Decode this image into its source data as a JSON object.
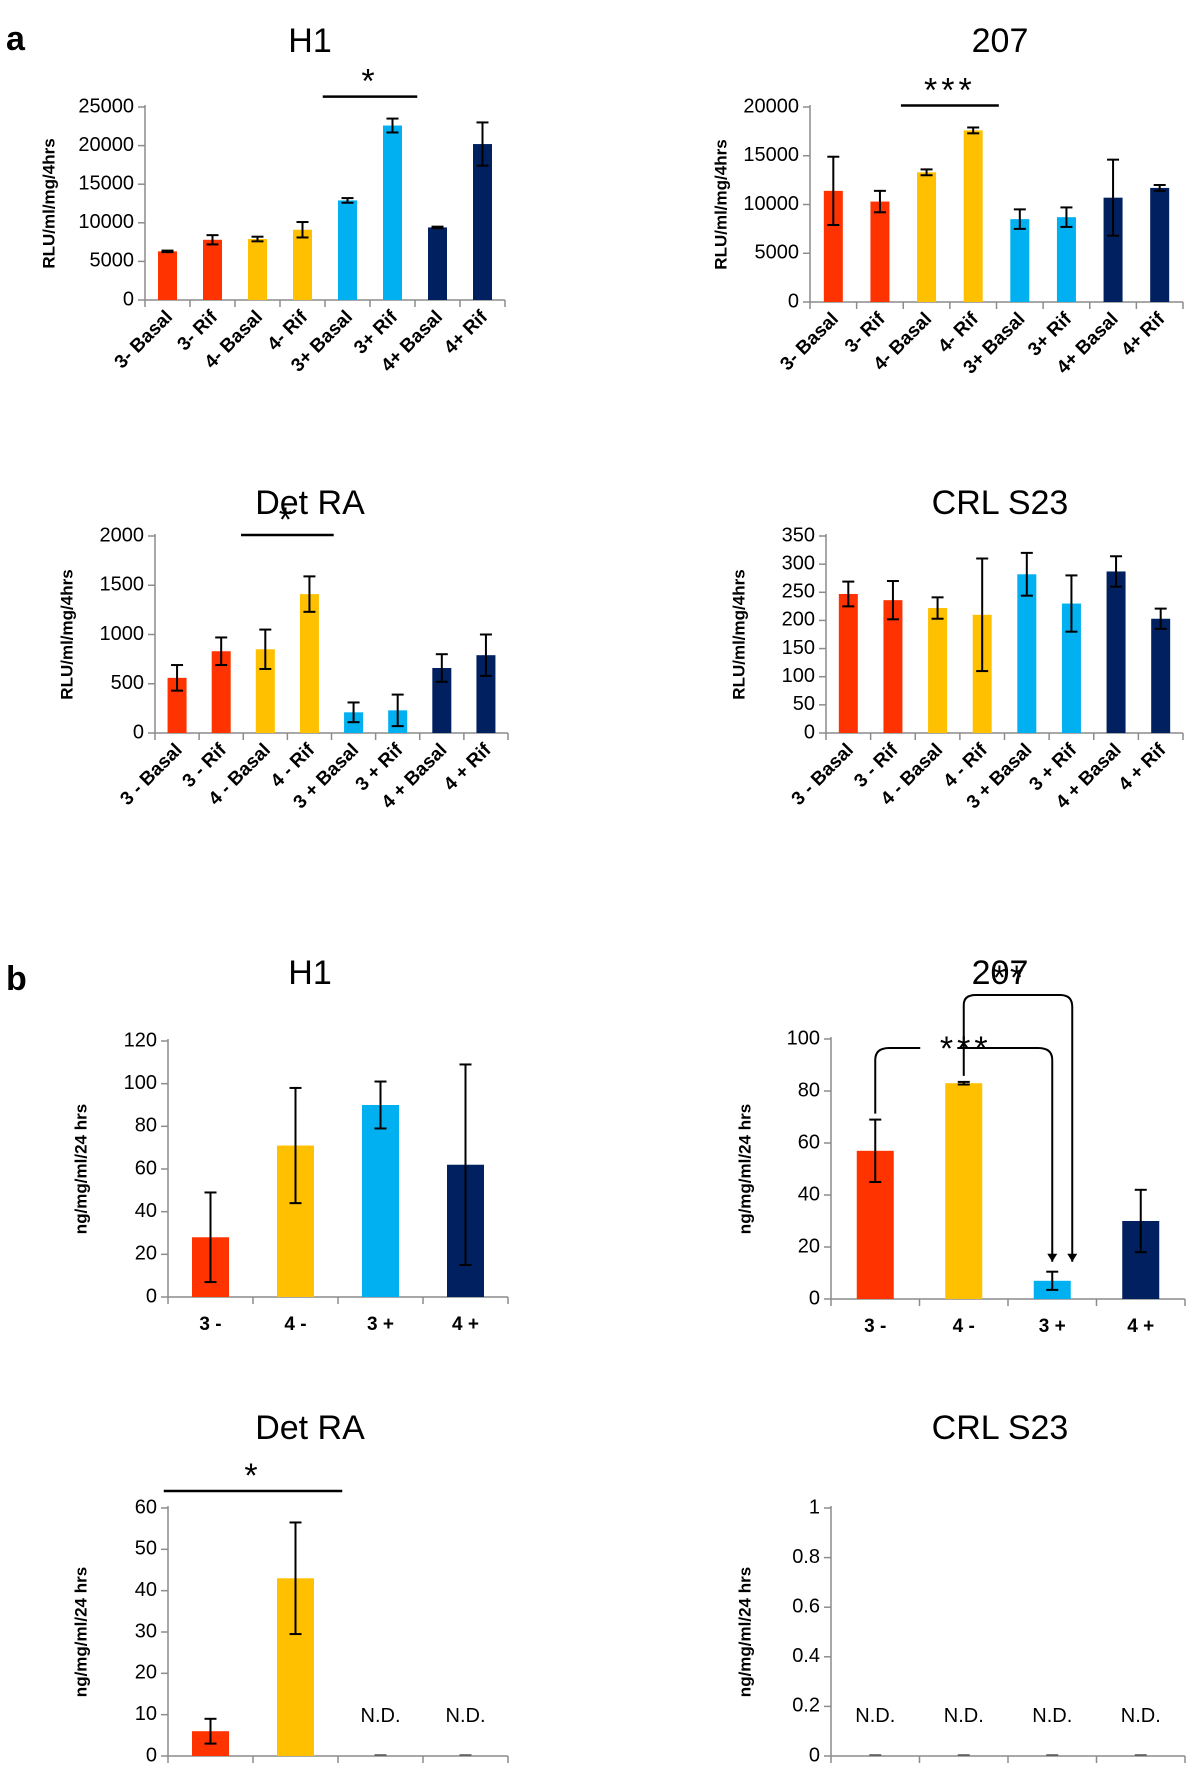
{
  "panels": {
    "a": "a",
    "b": "b"
  },
  "colors": {
    "red": "#ff3300",
    "yellow": "#ffc000",
    "lightblue": "#00b0f0",
    "navy": "#002060"
  },
  "chart_data": [
    {
      "id": "a-h1",
      "type": "bar",
      "title": "H1",
      "ylabel": "RLU/ml/mg/4hrs",
      "categories": [
        "3- Basal",
        "3- Rif",
        "4- Basal",
        "4- Rif",
        "3+ Basal",
        "3+ Rif",
        "4+ Basal",
        "4+ Rif"
      ],
      "values": [
        6300,
        7800,
        7900,
        9100,
        12900,
        22600,
        9400,
        20200
      ],
      "errors": [
        100,
        600,
        300,
        1000,
        300,
        900,
        100,
        2800
      ],
      "colors": [
        "red",
        "red",
        "yellow",
        "yellow",
        "lightblue",
        "lightblue",
        "navy",
        "navy"
      ],
      "ylim": [
        0,
        25000
      ],
      "yticks": [
        0,
        5000,
        10000,
        15000,
        20000,
        25000
      ],
      "significance": [
        {
          "label": "*",
          "from": 4,
          "to": 5
        }
      ],
      "nd": []
    },
    {
      "id": "a-207",
      "type": "bar",
      "title": "207",
      "ylabel": "RLU/ml/mg/4hrs",
      "categories": [
        "3- Basal",
        "3- Rif",
        "4- Basal",
        "4- Rif",
        "3+ Basal",
        "3+ Rif",
        "4+ Basal",
        "4+ Rif"
      ],
      "values": [
        11400,
        10300,
        13300,
        17600,
        8500,
        8700,
        10700,
        11700
      ],
      "errors": [
        3500,
        1100,
        300,
        300,
        1000,
        1000,
        3900,
        300
      ],
      "colors": [
        "red",
        "red",
        "yellow",
        "yellow",
        "lightblue",
        "lightblue",
        "navy",
        "navy"
      ],
      "ylim": [
        0,
        20000
      ],
      "yticks": [
        0,
        5000,
        10000,
        15000,
        20000
      ],
      "significance": [
        {
          "label": "***",
          "from": 2,
          "to": 3
        }
      ],
      "nd": []
    },
    {
      "id": "a-detra",
      "type": "bar",
      "title": "Det RA",
      "ylabel": "RLU/ml/mg/4hrs",
      "categories": [
        "3 - Basal",
        "3 - Rif",
        "4 - Basal",
        "4 - Rif",
        "3 + Basal",
        "3 + Rif",
        "4 + Basal",
        "4 + Rif"
      ],
      "values": [
        560,
        830,
        850,
        1410,
        210,
        230,
        660,
        790
      ],
      "errors": [
        130,
        140,
        200,
        180,
        100,
        160,
        140,
        210
      ],
      "colors": [
        "red",
        "red",
        "yellow",
        "yellow",
        "lightblue",
        "lightblue",
        "navy",
        "navy"
      ],
      "ylim": [
        0,
        2000
      ],
      "yticks": [
        0,
        500,
        1000,
        1500,
        2000
      ],
      "significance": [
        {
          "label": "*",
          "from": 2,
          "to": 3
        }
      ],
      "nd": []
    },
    {
      "id": "a-crl",
      "type": "bar",
      "title": "CRL S23",
      "ylabel": "RLU/ml/mg/4hrs",
      "categories": [
        "3 - Basal",
        "3 - Rif",
        "4 - Basal",
        "4 - Rif",
        "3 + Basal",
        "3 + Rif",
        "4 + Basal",
        "4 + Rif"
      ],
      "values": [
        247,
        236,
        222,
        210,
        282,
        230,
        287,
        203
      ],
      "errors": [
        22,
        34,
        19,
        100,
        38,
        50,
        27,
        18
      ],
      "colors": [
        "red",
        "red",
        "yellow",
        "yellow",
        "lightblue",
        "lightblue",
        "navy",
        "navy"
      ],
      "ylim": [
        0,
        350
      ],
      "yticks": [
        0,
        50,
        100,
        150,
        200,
        250,
        300,
        350
      ],
      "significance": [],
      "nd": []
    },
    {
      "id": "b-h1",
      "type": "bar",
      "title": "H1",
      "ylabel": "ng/mg/ml/24 hrs",
      "categories": [
        "3 -",
        "4 -",
        "3 +",
        "4 +"
      ],
      "values": [
        28,
        71,
        90,
        62
      ],
      "errors": [
        21,
        27,
        11,
        47
      ],
      "colors": [
        "red",
        "yellow",
        "lightblue",
        "navy"
      ],
      "ylim": [
        0,
        120
      ],
      "yticks": [
        0,
        20,
        40,
        60,
        80,
        100,
        120
      ],
      "significance": [],
      "nd": []
    },
    {
      "id": "b-207",
      "type": "bar",
      "title": "207",
      "ylabel": "ng/mg/ml/24 hrs",
      "categories": [
        "3 -",
        "4 -",
        "3 +",
        "4 +"
      ],
      "values": [
        57,
        83,
        7,
        30
      ],
      "errors": [
        12,
        0.5,
        3.5,
        12
      ],
      "colors": [
        "red",
        "yellow",
        "lightblue",
        "navy"
      ],
      "ylim": [
        0,
        100
      ],
      "yticks": [
        0,
        20,
        40,
        60,
        80,
        100
      ],
      "significance": [
        {
          "label": "***",
          "type": "bracket"
        },
        {
          "label": "**",
          "type": "bracket"
        }
      ],
      "nd": []
    },
    {
      "id": "b-detra",
      "type": "bar",
      "title": "Det RA",
      "ylabel": "ng/mg/ml/24 hrs",
      "categories": [
        "3 -",
        "4 -",
        "3 +",
        "4 +"
      ],
      "values": [
        6,
        43,
        0,
        0
      ],
      "errors": [
        3,
        13.5,
        0,
        0
      ],
      "colors": [
        "red",
        "yellow",
        "lightblue",
        "navy"
      ],
      "ylim": [
        0,
        60
      ],
      "yticks": [
        0,
        10,
        20,
        30,
        40,
        50,
        60
      ],
      "significance": [
        {
          "label": "*",
          "from": 0,
          "to": 1
        }
      ],
      "nd": [
        2,
        3
      ],
      "nd_label": "N.D."
    },
    {
      "id": "b-crl",
      "type": "bar",
      "title": "CRL S23",
      "ylabel": "ng/mg/ml/24 hrs",
      "categories": [
        "3 -",
        "4 -",
        "3 +",
        "4 +"
      ],
      "values": [
        0,
        0,
        0,
        0
      ],
      "errors": [
        0,
        0,
        0,
        0
      ],
      "colors": [
        "red",
        "yellow",
        "lightblue",
        "navy"
      ],
      "ylim": [
        0,
        1
      ],
      "yticks": [
        0,
        0.2,
        0.4,
        0.6,
        0.8,
        1
      ],
      "significance": [],
      "nd": [
        0,
        1,
        2,
        3
      ],
      "nd_label": "N.D."
    }
  ]
}
